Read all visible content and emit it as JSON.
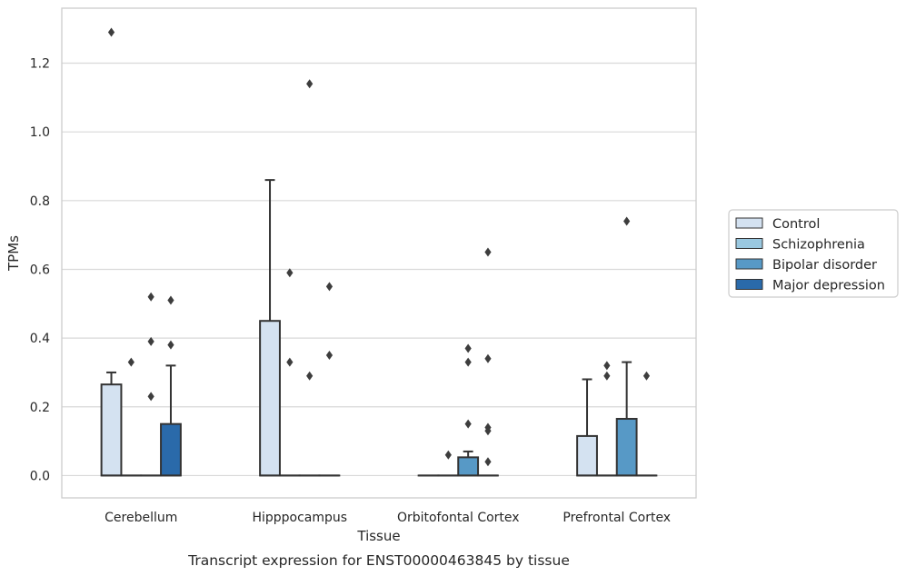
{
  "chart_data": {
    "type": "box",
    "xlabel": "Tissue",
    "ylabel": "TPMs",
    "caption": "Transcript expression for ENST00000463845 by tissue",
    "ylim": [
      -0.065,
      1.36
    ],
    "yticks": [
      0.0,
      0.2,
      0.4,
      0.6,
      0.8,
      1.0,
      1.2
    ],
    "ytick_labels": [
      "0.0",
      "0.2",
      "0.4",
      "0.6",
      "0.8",
      "1.0",
      "1.2"
    ],
    "grid": "horizontal",
    "legend_position": "right",
    "categories": [
      "Cerebellum",
      "Hipppocampus",
      "Orbitofontal Cortex",
      "Prefrontal Cortex"
    ],
    "series": [
      {
        "name": "Control",
        "color": "#d4e2f1",
        "boxes": [
          {
            "q1": 0.0,
            "median": 0.0,
            "q3": 0.265,
            "whisker_low": 0.0,
            "whisker_high": 0.3,
            "outliers": [
              1.29
            ]
          },
          {
            "q1": 0.0,
            "median": 0.0,
            "q3": 0.45,
            "whisker_low": 0.0,
            "whisker_high": 0.86,
            "outliers": []
          },
          {
            "q1": 0.0,
            "median": 0.0,
            "q3": 0.0,
            "whisker_low": 0.0,
            "whisker_high": 0.0,
            "outliers": []
          },
          {
            "q1": 0.0,
            "median": 0.0,
            "q3": 0.115,
            "whisker_low": 0.0,
            "whisker_high": 0.28,
            "outliers": []
          }
        ]
      },
      {
        "name": "Schizophrenia",
        "color": "#9ac8e0",
        "boxes": [
          {
            "q1": 0.0,
            "median": 0.0,
            "q3": 0.0,
            "whisker_low": 0.0,
            "whisker_high": 0.0,
            "outliers": [
              0.33
            ]
          },
          {
            "q1": 0.0,
            "median": 0.0,
            "q3": 0.0,
            "whisker_low": 0.0,
            "whisker_high": 0.0,
            "outliers": [
              0.59,
              0.33
            ]
          },
          {
            "q1": 0.0,
            "median": 0.0,
            "q3": 0.0,
            "whisker_low": 0.0,
            "whisker_high": 0.0,
            "outliers": [
              0.06
            ]
          },
          {
            "q1": 0.0,
            "median": 0.0,
            "q3": 0.0,
            "whisker_low": 0.0,
            "whisker_high": 0.0,
            "outliers": [
              0.32,
              0.29
            ]
          }
        ]
      },
      {
        "name": "Bipolar disorder",
        "color": "#5799c6",
        "boxes": [
          {
            "q1": 0.0,
            "median": 0.0,
            "q3": 0.0,
            "whisker_low": 0.0,
            "whisker_high": 0.0,
            "outliers": [
              0.52,
              0.39,
              0.23
            ]
          },
          {
            "q1": 0.0,
            "median": 0.0,
            "q3": 0.0,
            "whisker_low": 0.0,
            "whisker_high": 0.0,
            "outliers": [
              1.14,
              0.29
            ]
          },
          {
            "q1": 0.0,
            "median": 0.0,
            "q3": 0.053,
            "whisker_low": 0.0,
            "whisker_high": 0.07,
            "outliers": [
              0.37,
              0.33,
              0.15
            ]
          },
          {
            "q1": 0.0,
            "median": 0.0,
            "q3": 0.165,
            "whisker_low": 0.0,
            "whisker_high": 0.33,
            "outliers": [
              0.74
            ]
          }
        ]
      },
      {
        "name": "Major depression",
        "color": "#2a6aaa",
        "boxes": [
          {
            "q1": 0.0,
            "median": 0.0,
            "q3": 0.15,
            "whisker_low": 0.0,
            "whisker_high": 0.32,
            "outliers": [
              0.51,
              0.38
            ]
          },
          {
            "q1": 0.0,
            "median": 0.0,
            "q3": 0.0,
            "whisker_low": 0.0,
            "whisker_high": 0.0,
            "outliers": [
              0.55,
              0.35
            ]
          },
          {
            "q1": 0.0,
            "median": 0.0,
            "q3": 0.0,
            "whisker_low": 0.0,
            "whisker_high": 0.0,
            "outliers": [
              0.65,
              0.34,
              0.14,
              0.13,
              0.04
            ]
          },
          {
            "q1": 0.0,
            "median": 0.0,
            "q3": 0.0,
            "whisker_low": 0.0,
            "whisker_high": 0.0,
            "outliers": [
              0.29
            ]
          }
        ]
      }
    ]
  }
}
